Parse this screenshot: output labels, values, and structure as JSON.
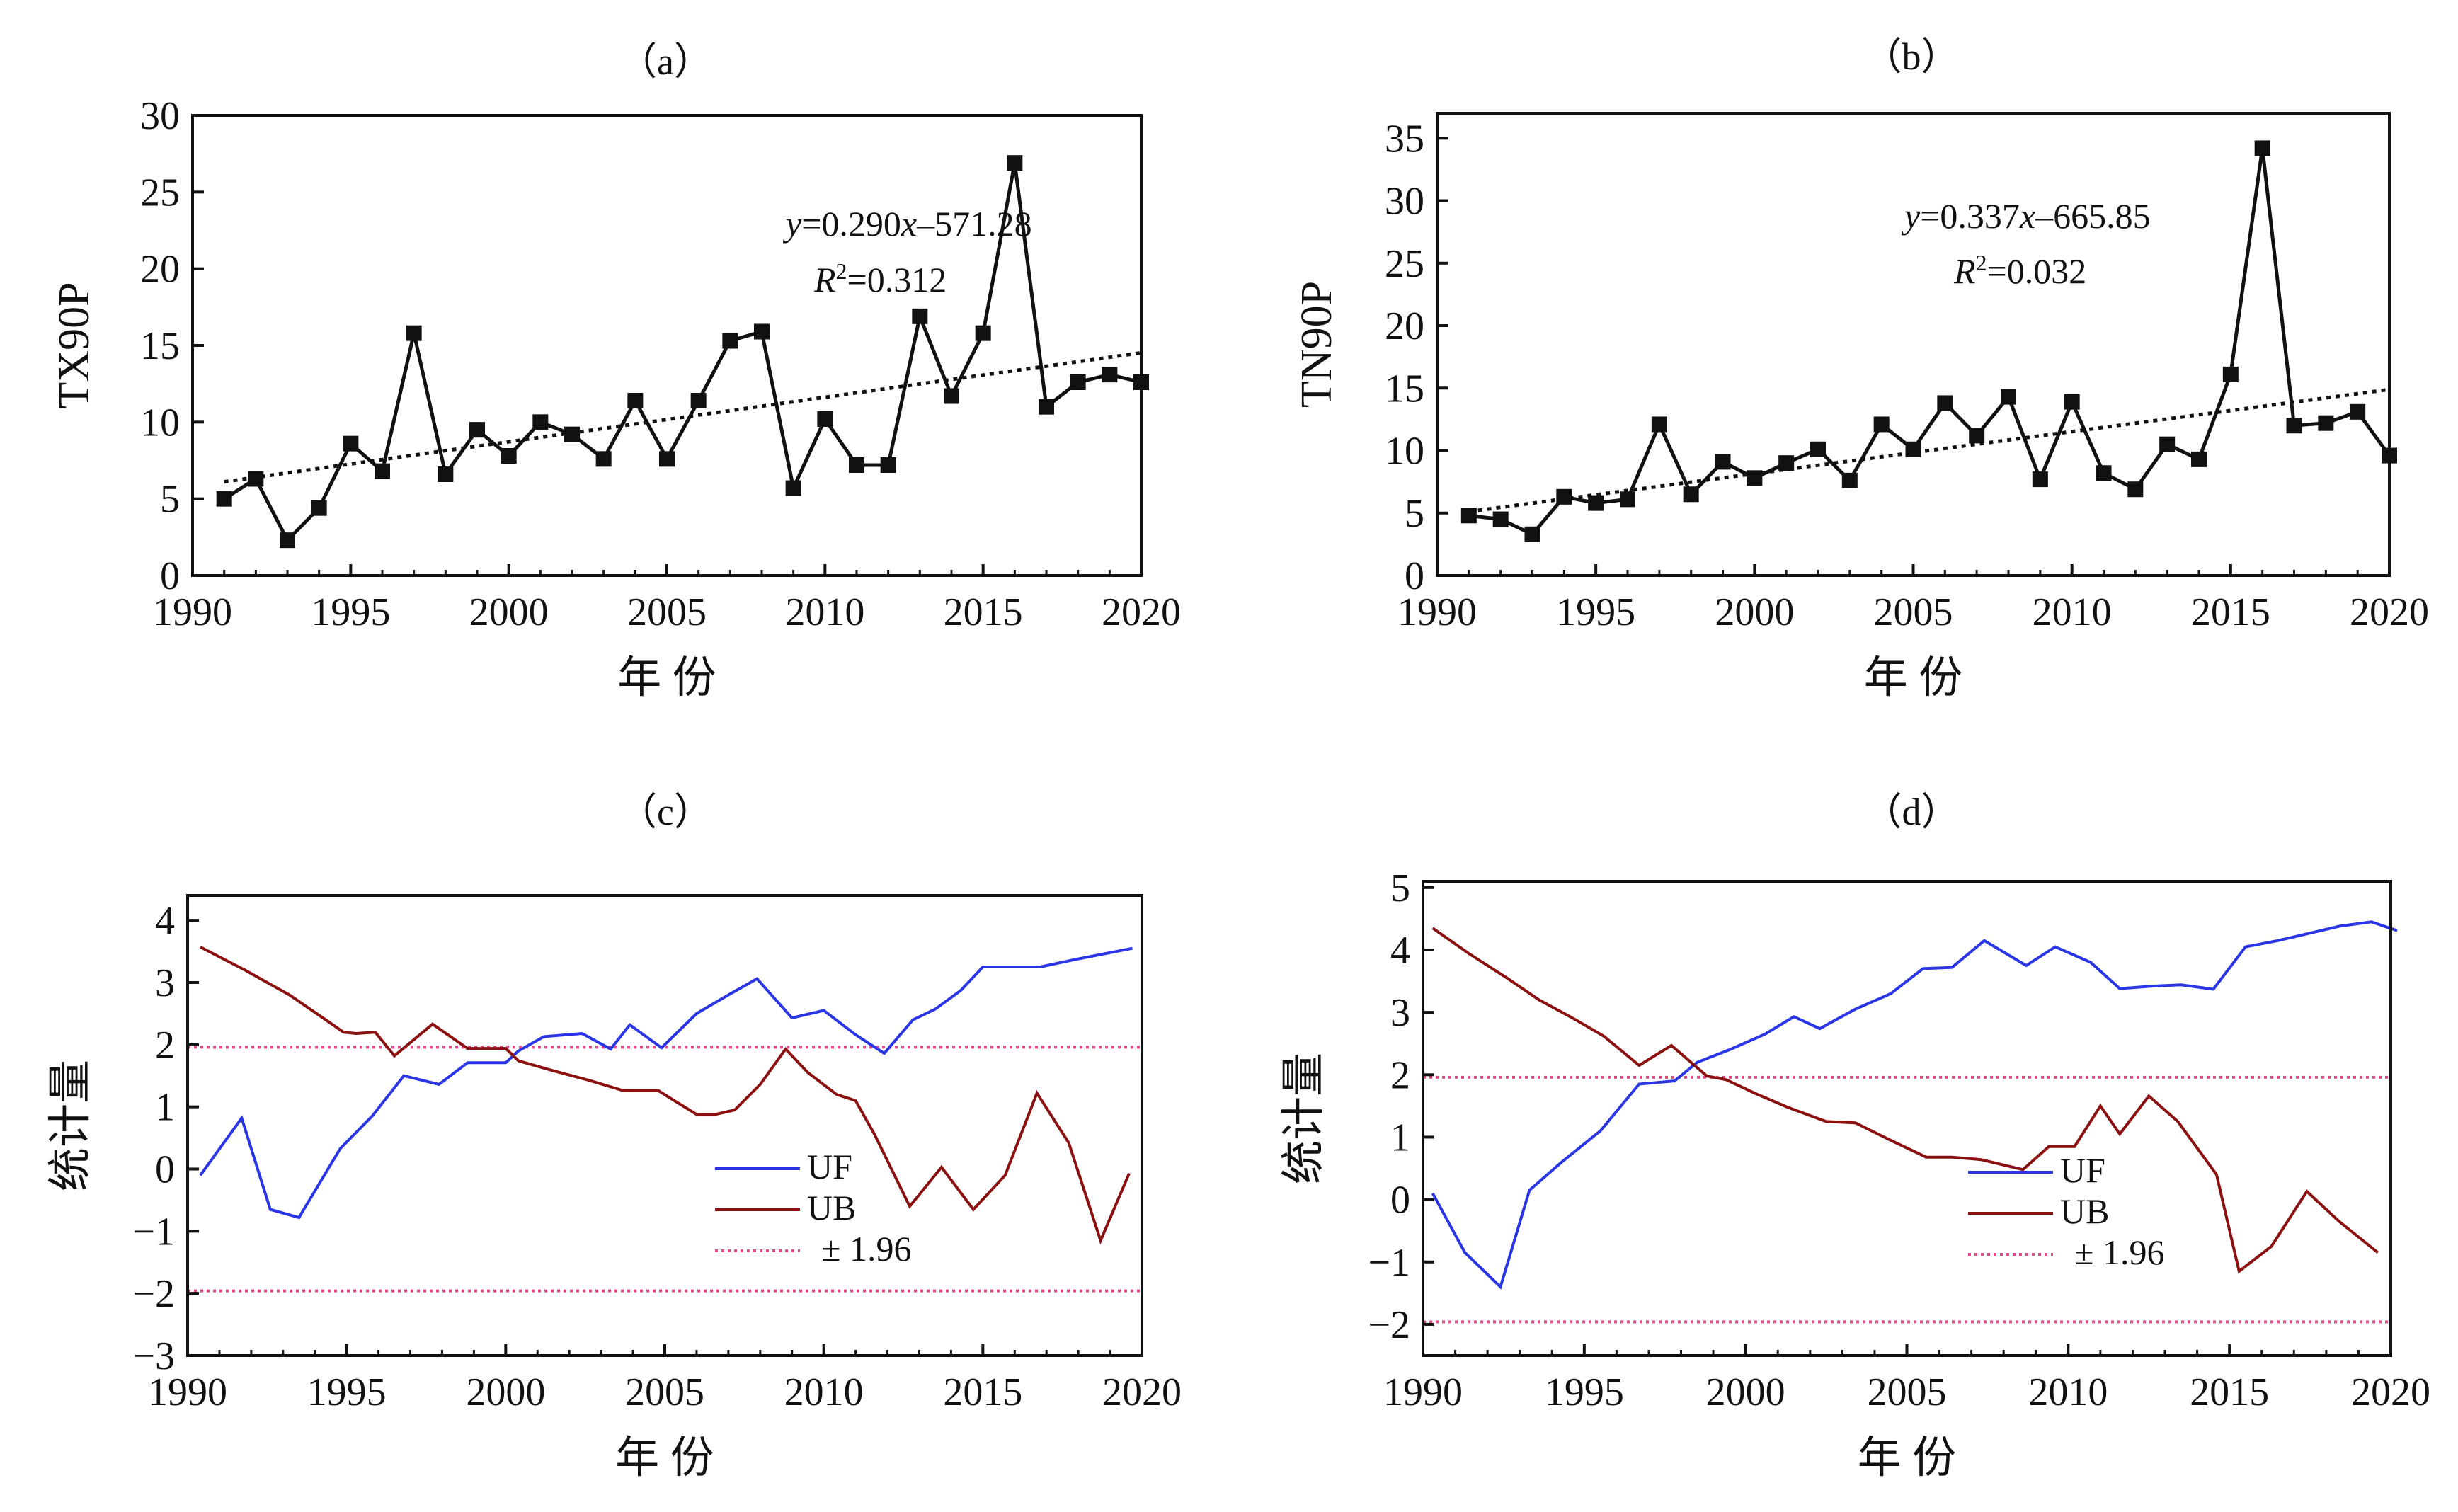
{
  "colors": {
    "axis": "#111111",
    "series_line_ab": "#111111",
    "uf": "#2a36e6",
    "ub": "#8b1111",
    "threshold": "#e24a8a"
  },
  "chart_data": [
    {
      "id": "a",
      "type": "line",
      "title": "（a）",
      "xlabel": "年 份",
      "ylabel": "TX90P",
      "xlim": [
        1990,
        2020
      ],
      "ylim": [
        0,
        30
      ],
      "xticks": [
        1990,
        1995,
        2000,
        2005,
        2010,
        2015,
        2020
      ],
      "yticks": [
        0,
        5,
        10,
        15,
        20,
        25,
        30
      ],
      "marker": "square",
      "annotation": {
        "eq_y": "y",
        "eq_mid": "=0.290",
        "eq_x": "x",
        "eq_end": "–571.28",
        "r2_label": "R",
        "r2_sup": "2",
        "r2_value": "=0.312"
      },
      "trend": {
        "slope": 0.29,
        "intercept": -571.28
      },
      "series": [
        {
          "x": [
            1991,
            1992,
            1993,
            1994,
            1995,
            1996,
            1997,
            1998,
            1999,
            2000,
            2001,
            2002,
            2003,
            2004,
            2005,
            2006,
            2007,
            2008,
            2009,
            2010,
            2011,
            2012,
            2013,
            2014,
            2015,
            2016,
            2017,
            2018,
            2019,
            2020
          ],
          "y": [
            5.0,
            6.3,
            2.3,
            4.4,
            8.6,
            6.8,
            15.8,
            6.6,
            9.5,
            7.8,
            10.0,
            9.2,
            7.6,
            11.4,
            7.6,
            11.4,
            15.3,
            15.9,
            5.7,
            10.2,
            7.2,
            7.2,
            16.9,
            11.7,
            15.8,
            26.9,
            11.0,
            12.6,
            13.1,
            12.6
          ]
        }
      ]
    },
    {
      "id": "b",
      "type": "line",
      "title": "（b）",
      "xlabel": "年 份",
      "ylabel": "TN90P",
      "xlim": [
        1990,
        2020
      ],
      "ylim": [
        0,
        37
      ],
      "xticks": [
        1990,
        1995,
        2000,
        2005,
        2010,
        2015,
        2020
      ],
      "yticks": [
        0,
        5,
        10,
        15,
        20,
        25,
        30,
        35
      ],
      "marker": "square",
      "annotation": {
        "eq_y": "y",
        "eq_mid": "=0.337",
        "eq_x": "x",
        "eq_end": "–665.85",
        "r2_label": "R",
        "r2_sup": "2",
        "r2_value": "=0.032"
      },
      "trend": {
        "slope": 0.337,
        "intercept": -665.85
      },
      "series": [
        {
          "x": [
            1991,
            1992,
            1993,
            1994,
            1995,
            1996,
            1997,
            1998,
            1999,
            2000,
            2001,
            2002,
            2003,
            2004,
            2005,
            2006,
            2007,
            2008,
            2009,
            2010,
            2011,
            2012,
            2013,
            2014,
            2015,
            2016,
            2017,
            2018,
            2019,
            2020
          ],
          "y": [
            4.8,
            4.5,
            3.3,
            6.3,
            5.8,
            6.1,
            12.1,
            6.5,
            9.1,
            7.8,
            9.0,
            10.1,
            7.6,
            12.1,
            10.1,
            13.8,
            11.2,
            14.3,
            7.7,
            13.9,
            8.2,
            6.9,
            10.5,
            9.3,
            16.1,
            34.2,
            12.0,
            12.2,
            13.1,
            9.6
          ]
        }
      ]
    },
    {
      "id": "c",
      "type": "line",
      "title": "（c）",
      "xlabel": "年 份",
      "ylabel": "统计量",
      "xlim": [
        1990,
        2020
      ],
      "ylim": [
        -3,
        4.4
      ],
      "xticks": [
        1990,
        1995,
        2000,
        2005,
        2010,
        2015,
        2020
      ],
      "yticks": [
        -3,
        -2,
        -1,
        0,
        1,
        2,
        3,
        4
      ],
      "thresholds": [
        1.96,
        -1.96
      ],
      "legend": {
        "items": [
          "UF",
          "UB",
          "± 1.96"
        ],
        "position": "lower-right"
      },
      "series": [
        {
          "name": "UF",
          "x": [
            1990.4,
            1991.7,
            1992.6,
            1993.5,
            1994.8,
            1995.8,
            1996.8,
            1997.9,
            1998.8,
            2000.0,
            2000.4,
            2001.2,
            2002.4,
            2003.3,
            2003.9,
            2004.9,
            2006.0,
            2007.0,
            2007.9,
            2009.0,
            2010.0,
            2011.0,
            2011.9,
            2012.8,
            2013.5,
            2014.3,
            2015.0,
            2015.8,
            2016.8,
            2018.0,
            2019.7
          ],
          "y": [
            -0.1,
            0.82,
            -0.65,
            -0.78,
            0.33,
            0.85,
            1.5,
            1.36,
            1.71,
            1.71,
            1.9,
            2.13,
            2.18,
            1.93,
            2.32,
            1.95,
            2.5,
            2.8,
            3.06,
            2.43,
            2.55,
            2.16,
            1.86,
            2.4,
            2.57,
            2.87,
            3.25,
            3.25,
            3.25,
            3.38,
            3.55
          ]
        },
        {
          "name": "UB",
          "x": [
            1990.4,
            1991.8,
            1993.2,
            1994.2,
            1994.9,
            1995.3,
            1995.9,
            1996.5,
            1997.7,
            1998.8,
            2000.0,
            2000.4,
            2001.5,
            2002.6,
            2003.7,
            2004.8,
            2005.3,
            2006.0,
            2006.6,
            2007.2,
            2008.0,
            2008.8,
            2009.5,
            2010.4,
            2011.0,
            2011.6,
            2012.7,
            2013.7,
            2014.7,
            2015.7,
            2016.7,
            2017.7,
            2018.7,
            2019.6
          ],
          "y": [
            3.57,
            3.2,
            2.8,
            2.45,
            2.2,
            2.18,
            2.2,
            1.82,
            2.33,
            1.94,
            1.94,
            1.74,
            1.58,
            1.43,
            1.26,
            1.26,
            1.1,
            0.88,
            0.88,
            0.95,
            1.36,
            1.93,
            1.55,
            1.2,
            1.1,
            0.55,
            -0.6,
            0.03,
            -0.65,
            -0.1,
            1.22,
            0.42,
            -1.15,
            -0.07
          ]
        }
      ]
    },
    {
      "id": "d",
      "type": "line",
      "title": "（d）",
      "xlabel": "年 份",
      "ylabel": "统计量",
      "xlim": [
        1990,
        2020
      ],
      "ylim": [
        -2.5,
        5.1
      ],
      "xticks": [
        1990,
        1995,
        2000,
        2005,
        2010,
        2015,
        2020
      ],
      "yticks": [
        -2,
        -1,
        0,
        1,
        2,
        3,
        4,
        5
      ],
      "thresholds": [
        1.96,
        -1.96
      ],
      "legend": {
        "items": [
          "UF",
          "UB",
          "± 1.96"
        ],
        "position": "lower-right"
      },
      "series": [
        {
          "name": "UF",
          "x": [
            1990.3,
            1991.3,
            1992.4,
            1993.3,
            1994.3,
            1995.5,
            1996.7,
            1997.8,
            1998.5,
            1999.5,
            2000.6,
            2001.5,
            2002.3,
            2003.4,
            2004.5,
            2005.5,
            2006.4,
            2007.4,
            2008.7,
            2009.6,
            2010.7,
            2011.6,
            2012.6,
            2013.5,
            2014.5,
            2015.5,
            2016.5,
            2017.5,
            2018.4,
            2019.4,
            2020.2
          ],
          "y": [
            0.1,
            -0.85,
            -1.4,
            0.15,
            0.6,
            1.1,
            1.85,
            1.9,
            2.2,
            2.4,
            2.65,
            2.93,
            2.74,
            3.05,
            3.3,
            3.7,
            3.72,
            4.15,
            3.75,
            4.05,
            3.8,
            3.38,
            3.42,
            3.44,
            3.37,
            4.05,
            4.15,
            4.27,
            4.38,
            4.45,
            4.31
          ]
        },
        {
          "name": "UB",
          "x": [
            1990.3,
            1991.4,
            1992.6,
            1993.6,
            1994.6,
            1995.6,
            1996.7,
            1997.7,
            1998.8,
            1999.4,
            2000.3,
            2001.3,
            2002.5,
            2003.4,
            2004.5,
            2005.6,
            2006.4,
            2007.3,
            2008.6,
            2009.4,
            2010.2,
            2011.0,
            2011.6,
            2012.5,
            2013.4,
            2014.6,
            2015.3,
            2016.3,
            2017.4,
            2018.4,
            2019.6
          ],
          "y": [
            4.35,
            3.95,
            3.55,
            3.2,
            2.92,
            2.62,
            2.15,
            2.47,
            1.98,
            1.92,
            1.7,
            1.48,
            1.25,
            1.23,
            0.95,
            0.68,
            0.68,
            0.64,
            0.48,
            0.85,
            0.85,
            1.5,
            1.05,
            1.66,
            1.25,
            0.4,
            -1.15,
            -0.75,
            0.13,
            -0.35,
            -0.85
          ]
        }
      ]
    }
  ]
}
